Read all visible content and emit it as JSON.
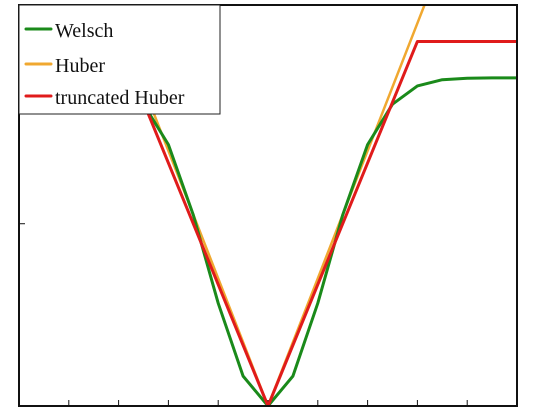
{
  "chart_data": {
    "type": "line",
    "title": "",
    "xlabel": "",
    "ylabel": "",
    "xlim": [
      -5,
      5
    ],
    "ylim": [
      0,
      1.1
    ],
    "grid": false,
    "legend_position": "top-left",
    "series": [
      {
        "name": "Welsch",
        "color": "#1a8a1a",
        "x": [
          -5,
          -4.5,
          -4,
          -3.5,
          -3,
          -2.5,
          -2,
          -1.5,
          -1,
          -0.5,
          0,
          0.5,
          1,
          1.5,
          2,
          2.5,
          3,
          3.5,
          4,
          4.5,
          5
        ],
        "y": [
          0.9,
          0.9,
          0.899,
          0.895,
          0.878,
          0.828,
          0.717,
          0.524,
          0.282,
          0.082,
          0,
          0.082,
          0.282,
          0.524,
          0.717,
          0.828,
          0.878,
          0.895,
          0.899,
          0.9,
          0.9
        ]
      },
      {
        "name": "Huber",
        "color": "#f0a830",
        "x": [
          -4.2,
          -3,
          -2,
          -1,
          0,
          1,
          2,
          3,
          4.2
        ],
        "y": [
          1.47,
          1.05,
          0.7,
          0.35,
          0,
          0.35,
          0.7,
          1.05,
          1.47
        ]
      },
      {
        "name": "truncated Huber",
        "color": "#e01b1b",
        "x": [
          -5,
          -3,
          0,
          3,
          5
        ],
        "y": [
          1,
          1,
          0,
          1,
          1
        ]
      }
    ]
  }
}
